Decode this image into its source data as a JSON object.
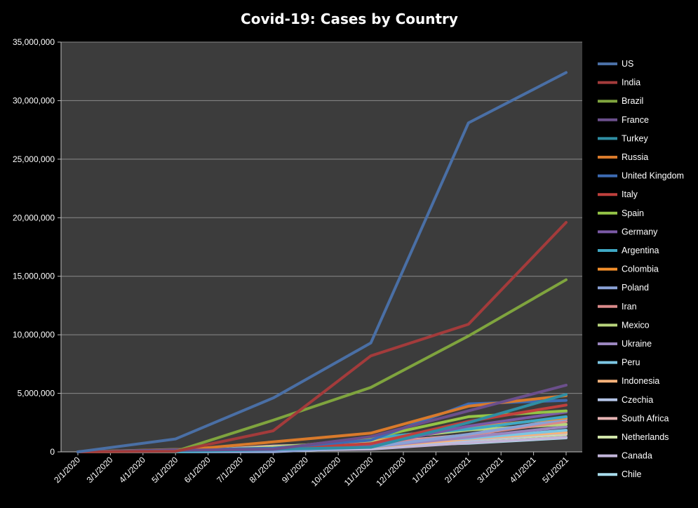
{
  "chart_data": {
    "type": "line",
    "title": "Covid-19:  Cases by Country",
    "xlabel": "",
    "ylabel": "",
    "x": [
      "2/1/2020",
      "3/1/2020",
      "4/1/2020",
      "5/1/2020",
      "6/1/2020",
      "7/1/2020",
      "8/1/2020",
      "9/1/2020",
      "10/1/2020",
      "11/1/2020",
      "12/1/2020",
      "1/1/2021",
      "2/1/2021",
      "3/1/2021",
      "4/1/2021",
      "5/1/2021"
    ],
    "ylim": [
      0,
      35000000
    ],
    "yticks": [
      0,
      5000000,
      10000000,
      15000000,
      20000000,
      25000000,
      30000000,
      35000000
    ],
    "ytick_labels": [
      "0",
      "5,000,000",
      "10,000,000",
      "15,000,000",
      "20,000,000",
      "25,000,000",
      "30,000,000",
      "35,000,000"
    ],
    "grid": true,
    "legend_position": "right",
    "plot_background": "#3c3c3c",
    "series": [
      {
        "name": "US",
        "color": "#4a6fa5",
        "points": [
          [
            "2/1/2020",
            0
          ],
          [
            "5/1/2020",
            1100000
          ],
          [
            "8/1/2020",
            4600000
          ],
          [
            "11/1/2020",
            9300000
          ],
          [
            "2/1/2021",
            28100000
          ],
          [
            "5/1/2021",
            32400000
          ]
        ]
      },
      {
        "name": "India",
        "color": "#a33b3b",
        "points": [
          [
            "2/1/2020",
            0
          ],
          [
            "5/1/2020",
            50000
          ],
          [
            "8/1/2020",
            1800000
          ],
          [
            "11/1/2020",
            8200000
          ],
          [
            "2/1/2021",
            10900000
          ],
          [
            "5/1/2021",
            19600000
          ]
        ]
      },
      {
        "name": "Brazil",
        "color": "#7fa43e",
        "points": [
          [
            "2/1/2020",
            0
          ],
          [
            "5/1/2020",
            50000
          ],
          [
            "8/1/2020",
            2700000
          ],
          [
            "11/1/2020",
            5500000
          ],
          [
            "2/1/2021",
            9900000
          ],
          [
            "5/1/2021",
            14700000
          ]
        ]
      },
      {
        "name": "France",
        "color": "#6b4f8c",
        "points": [
          [
            "2/1/2020",
            0
          ],
          [
            "5/1/2020",
            140000
          ],
          [
            "8/1/2020",
            220000
          ],
          [
            "11/1/2020",
            1300000
          ],
          [
            "2/1/2021",
            3500000
          ],
          [
            "5/1/2021",
            5700000
          ]
        ]
      },
      {
        "name": "Turkey",
        "color": "#2f8ea3",
        "points": [
          [
            "2/1/2020",
            0
          ],
          [
            "5/1/2020",
            120000
          ],
          [
            "8/1/2020",
            230000
          ],
          [
            "11/1/2020",
            390000
          ],
          [
            "2/1/2021",
            2500000
          ],
          [
            "5/1/2021",
            4900000
          ]
        ]
      },
      {
        "name": "Russia",
        "color": "#d97a2b",
        "points": [
          [
            "2/1/2020",
            0
          ],
          [
            "5/1/2020",
            110000
          ],
          [
            "8/1/2020",
            850000
          ],
          [
            "11/1/2020",
            1600000
          ],
          [
            "2/1/2021",
            3900000
          ],
          [
            "5/1/2021",
            4800000
          ]
        ]
      },
      {
        "name": "United Kingdom",
        "color": "#3d6bb3",
        "points": [
          [
            "2/1/2020",
            0
          ],
          [
            "5/1/2020",
            170000
          ],
          [
            "8/1/2020",
            310000
          ],
          [
            "11/1/2020",
            1000000
          ],
          [
            "2/1/2021",
            4100000
          ],
          [
            "5/1/2021",
            4400000
          ]
        ]
      },
      {
        "name": "Italy",
        "color": "#c0403d",
        "points": [
          [
            "2/1/2020",
            0
          ],
          [
            "5/1/2020",
            200000
          ],
          [
            "8/1/2020",
            250000
          ],
          [
            "11/1/2020",
            700000
          ],
          [
            "2/1/2021",
            2600000
          ],
          [
            "5/1/2021",
            4000000
          ]
        ]
      },
      {
        "name": "Spain",
        "color": "#94c447",
        "points": [
          [
            "2/1/2020",
            0
          ],
          [
            "5/1/2020",
            210000
          ],
          [
            "8/1/2020",
            290000
          ],
          [
            "11/1/2020",
            1200000
          ],
          [
            "2/1/2021",
            3000000
          ],
          [
            "5/1/2021",
            3500000
          ]
        ]
      },
      {
        "name": "Germany",
        "color": "#7b5aa6",
        "points": [
          [
            "2/1/2020",
            0
          ],
          [
            "5/1/2020",
            160000
          ],
          [
            "8/1/2020",
            210000
          ],
          [
            "11/1/2020",
            530000
          ],
          [
            "2/1/2021",
            2200000
          ],
          [
            "5/1/2021",
            3400000
          ]
        ]
      },
      {
        "name": "Argentina",
        "color": "#3fa8c4",
        "points": [
          [
            "2/1/2020",
            0
          ],
          [
            "5/1/2020",
            5000
          ],
          [
            "8/1/2020",
            200000
          ],
          [
            "11/1/2020",
            1200000
          ],
          [
            "2/1/2021",
            1950000
          ],
          [
            "5/1/2021",
            3000000
          ]
        ]
      },
      {
        "name": "Colombia",
        "color": "#f28e2b",
        "points": [
          [
            "2/1/2020",
            0
          ],
          [
            "5/1/2020",
            8000
          ],
          [
            "8/1/2020",
            300000
          ],
          [
            "11/1/2020",
            1100000
          ],
          [
            "2/1/2021",
            2100000
          ],
          [
            "5/1/2021",
            2900000
          ]
        ]
      },
      {
        "name": "Poland",
        "color": "#8aa2d6",
        "points": [
          [
            "2/1/2020",
            0
          ],
          [
            "5/1/2020",
            13000
          ],
          [
            "8/1/2020",
            46000
          ],
          [
            "11/1/2020",
            400000
          ],
          [
            "2/1/2021",
            1500000
          ],
          [
            "5/1/2021",
            2800000
          ]
        ]
      },
      {
        "name": "Iran",
        "color": "#d98a8a",
        "points": [
          [
            "2/1/2020",
            0
          ],
          [
            "5/1/2020",
            95000
          ],
          [
            "8/1/2020",
            300000
          ],
          [
            "11/1/2020",
            650000
          ],
          [
            "2/1/2021",
            1450000
          ],
          [
            "5/1/2021",
            2600000
          ]
        ]
      },
      {
        "name": "Mexico",
        "color": "#b8d47c",
        "points": [
          [
            "2/1/2020",
            0
          ],
          [
            "5/1/2020",
            20000
          ],
          [
            "8/1/2020",
            420000
          ],
          [
            "11/1/2020",
            950000
          ],
          [
            "2/1/2021",
            1870000
          ],
          [
            "5/1/2021",
            2350000
          ]
        ]
      },
      {
        "name": "Ukraine",
        "color": "#9b86bf",
        "points": [
          [
            "2/1/2020",
            0
          ],
          [
            "5/1/2020",
            10000
          ],
          [
            "8/1/2020",
            75000
          ],
          [
            "11/1/2020",
            420000
          ],
          [
            "2/1/2021",
            1250000
          ],
          [
            "5/1/2021",
            2150000
          ]
        ]
      },
      {
        "name": "Peru",
        "color": "#7cc6e3",
        "points": [
          [
            "2/1/2020",
            0
          ],
          [
            "5/1/2020",
            40000
          ],
          [
            "8/1/2020",
            420000
          ],
          [
            "11/1/2020",
            900000
          ],
          [
            "2/1/2021",
            1150000
          ],
          [
            "5/1/2021",
            1850000
          ]
        ]
      },
      {
        "name": "Indonesia",
        "color": "#f7b27a",
        "points": [
          [
            "2/1/2020",
            0
          ],
          [
            "5/1/2020",
            10000
          ],
          [
            "8/1/2020",
            110000
          ],
          [
            "11/1/2020",
            410000
          ],
          [
            "2/1/2021",
            1100000
          ],
          [
            "5/1/2021",
            1670000
          ]
        ]
      },
      {
        "name": "Czechia",
        "color": "#b3c3e6",
        "points": [
          [
            "2/1/2020",
            0
          ],
          [
            "5/1/2020",
            7700
          ],
          [
            "8/1/2020",
            16000
          ],
          [
            "11/1/2020",
            370000
          ],
          [
            "2/1/2021",
            1000000
          ],
          [
            "5/1/2021",
            1630000
          ]
        ]
      },
      {
        "name": "South Africa",
        "color": "#e6b3b3",
        "points": [
          [
            "2/1/2020",
            0
          ],
          [
            "5/1/2020",
            5600
          ],
          [
            "8/1/2020",
            500000
          ],
          [
            "11/1/2020",
            730000
          ],
          [
            "2/1/2021",
            1450000
          ],
          [
            "5/1/2021",
            1590000
          ]
        ]
      },
      {
        "name": "Netherlands",
        "color": "#cfe3a8",
        "points": [
          [
            "2/1/2020",
            0
          ],
          [
            "5/1/2020",
            40000
          ],
          [
            "8/1/2020",
            55000
          ],
          [
            "11/1/2020",
            380000
          ],
          [
            "2/1/2021",
            1000000
          ],
          [
            "5/1/2021",
            1500000
          ]
        ]
      },
      {
        "name": "Canada",
        "color": "#c2b5d9",
        "points": [
          [
            "2/1/2020",
            0
          ],
          [
            "5/1/2020",
            55000
          ],
          [
            "8/1/2020",
            117000
          ],
          [
            "11/1/2020",
            240000
          ],
          [
            "2/1/2021",
            780000
          ],
          [
            "5/1/2021",
            1250000
          ]
        ]
      },
      {
        "name": "Chile",
        "color": "#a8dcec",
        "points": [
          [
            "2/1/2020",
            0
          ],
          [
            "5/1/2020",
            17000
          ],
          [
            "8/1/2020",
            360000
          ],
          [
            "11/1/2020",
            510000
          ],
          [
            "2/1/2021",
            730000
          ],
          [
            "5/1/2021",
            1200000
          ]
        ]
      }
    ]
  }
}
